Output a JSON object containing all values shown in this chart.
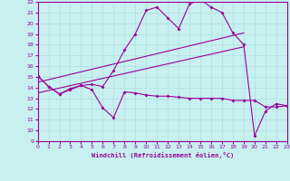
{
  "title": "",
  "xlabel": "Windchill (Refroidissement éolien,°C)",
  "ylabel": "",
  "bg_color": "#c8f0f0",
  "line_color": "#990099",
  "grid_color": "#b0dede",
  "xmin": 0,
  "xmax": 23,
  "ymin": 9,
  "ymax": 22,
  "xticks": [
    0,
    1,
    2,
    3,
    4,
    5,
    6,
    7,
    8,
    9,
    10,
    11,
    12,
    13,
    14,
    15,
    16,
    17,
    18,
    19,
    20,
    21,
    22,
    23
  ],
  "yticks": [
    9,
    10,
    11,
    12,
    13,
    14,
    15,
    16,
    17,
    18,
    19,
    20,
    21,
    22
  ],
  "curve_upper_x": [
    0,
    1,
    2,
    3,
    4,
    5,
    6,
    7,
    8,
    9,
    10,
    11,
    12,
    13,
    14,
    15,
    16,
    17,
    18,
    19,
    20,
    21,
    22,
    23
  ],
  "curve_upper_y": [
    15.1,
    14.1,
    13.4,
    13.8,
    14.2,
    14.3,
    14.1,
    15.6,
    17.5,
    19.0,
    21.2,
    21.5,
    20.5,
    19.5,
    21.8,
    22.2,
    21.5,
    21.0,
    19.1,
    18.0,
    9.5,
    11.8,
    12.5,
    12.3
  ],
  "curve_lower_x": [
    0,
    1,
    2,
    3,
    4,
    5,
    6,
    7,
    8,
    9,
    10,
    11,
    12,
    13,
    14,
    15,
    16,
    17,
    18,
    19,
    20,
    21,
    22,
    23
  ],
  "curve_lower_y": [
    15.1,
    14.1,
    13.4,
    13.9,
    14.2,
    13.8,
    12.1,
    11.2,
    13.6,
    13.5,
    13.3,
    13.2,
    13.2,
    13.1,
    13.0,
    13.0,
    13.0,
    13.0,
    12.8,
    12.8,
    12.8,
    12.2,
    12.2,
    12.3
  ],
  "trend1_x": [
    0,
    19
  ],
  "trend1_y": [
    14.5,
    19.1
  ],
  "trend2_x": [
    0,
    19
  ],
  "trend2_y": [
    13.5,
    17.8
  ]
}
